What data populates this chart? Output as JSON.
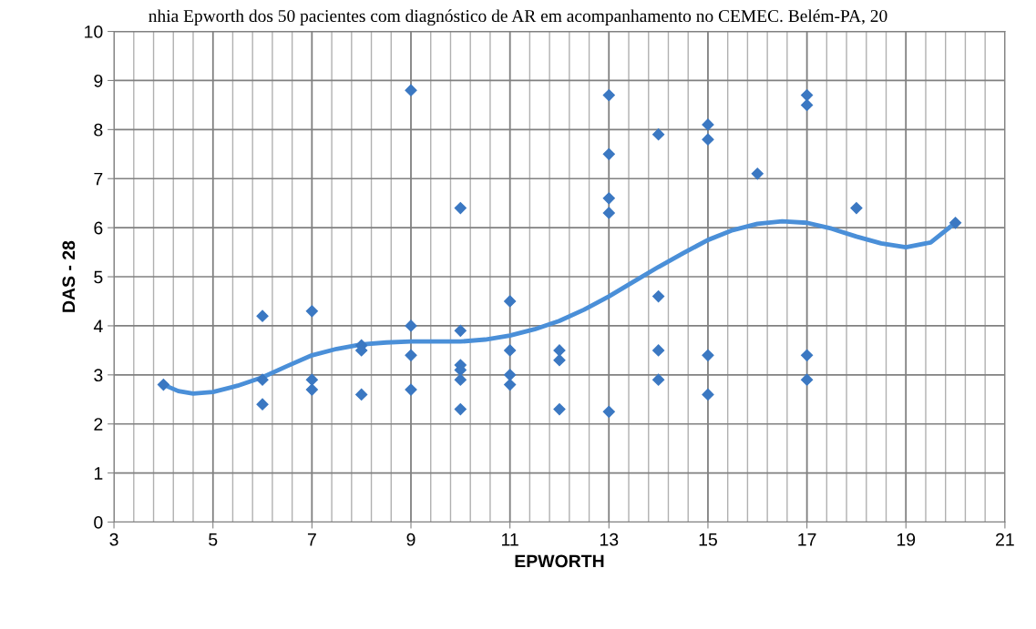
{
  "chart_data": {
    "type": "scatter",
    "title": "nhia Epworth dos 50 pacientes com diagnóstico de AR em acompanhamento no CEMEC. Belém-PA, 20",
    "xlabel": "EPWORTH",
    "ylabel": "DAS - 28",
    "xlim": [
      3,
      21
    ],
    "xticks": [
      3,
      5,
      7,
      9,
      11,
      13,
      15,
      17,
      19,
      21
    ],
    "ylim": [
      0,
      10
    ],
    "yticks": [
      0,
      1,
      2,
      3,
      4,
      5,
      6,
      7,
      8,
      9,
      10
    ],
    "grid": true,
    "marker": "diamond",
    "series": [
      {
        "color": "#3b78c2",
        "x": [
          4,
          6,
          6,
          6,
          7,
          7,
          7,
          8,
          8,
          8,
          9,
          9,
          9,
          9,
          10,
          10,
          10,
          10,
          10,
          10,
          11,
          11,
          11,
          11,
          12,
          12,
          12,
          13,
          13,
          13,
          13,
          13,
          14,
          14,
          14,
          14,
          15,
          15,
          15,
          15,
          16,
          17,
          17,
          17,
          17,
          18,
          20
        ],
        "values": [
          2.8,
          4.2,
          2.9,
          2.4,
          4.3,
          2.9,
          2.7,
          3.6,
          3.5,
          2.6,
          8.8,
          4.0,
          3.4,
          2.7,
          6.4,
          3.9,
          3.2,
          3.1,
          2.9,
          2.3,
          4.5,
          3.5,
          3.0,
          2.8,
          3.5,
          3.3,
          2.3,
          8.7,
          7.5,
          6.6,
          6.3,
          2.25,
          7.9,
          4.6,
          3.5,
          2.9,
          8.1,
          7.8,
          3.4,
          2.6,
          7.1,
          8.7,
          8.5,
          3.4,
          2.9,
          6.4,
          6.1
        ]
      },
      {
        "type": "line",
        "color": "#4a8fd8",
        "marker": "none",
        "line_style": "solid",
        "x": [
          4,
          4.3,
          4.6,
          5,
          5.5,
          6,
          6.5,
          7,
          7.5,
          8,
          8.5,
          9,
          9.5,
          10,
          10.5,
          11,
          11.5,
          12,
          12.5,
          13,
          13.5,
          14,
          14.5,
          15,
          15.5,
          16,
          16.5,
          17,
          17.5,
          18,
          18.5,
          19,
          19.5,
          20
        ],
        "values": [
          2.8,
          2.67,
          2.62,
          2.65,
          2.78,
          2.95,
          3.18,
          3.4,
          3.53,
          3.62,
          3.66,
          3.68,
          3.68,
          3.68,
          3.72,
          3.8,
          3.93,
          4.1,
          4.33,
          4.6,
          4.9,
          5.2,
          5.48,
          5.75,
          5.95,
          6.08,
          6.13,
          6.1,
          5.98,
          5.82,
          5.68,
          5.6,
          5.7,
          6.1
        ]
      }
    ]
  }
}
